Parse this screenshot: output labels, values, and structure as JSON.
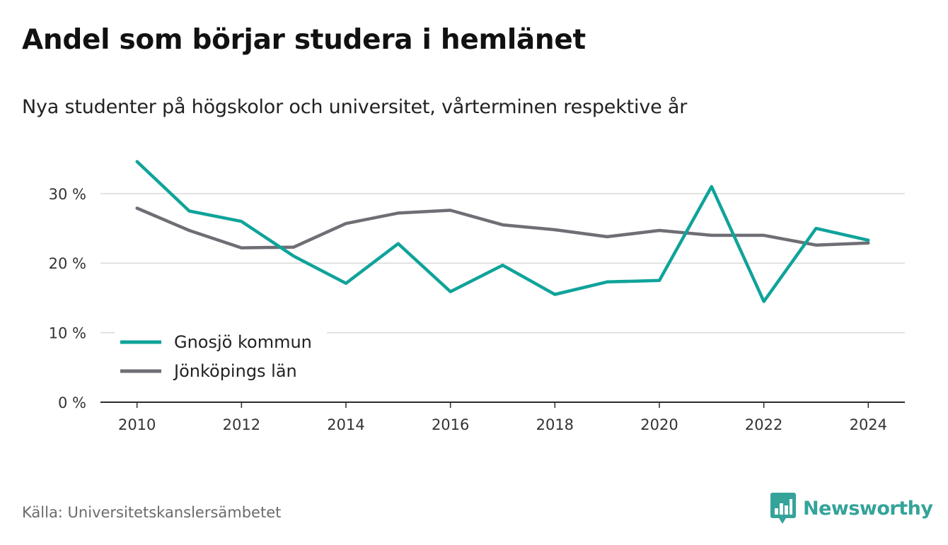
{
  "header": {
    "title": "Andel som börjar studera i hemlänet",
    "subtitle": "Nya studenter på högskolor och universitet, vårterminen respektive år"
  },
  "footer": {
    "source": "Källa: Universitetskanslersämbetet",
    "brand": "Newsworthy",
    "brand_icon": "bar-chart-speech-bubble-icon",
    "brand_color": "#35a39a"
  },
  "chart_data": {
    "type": "line",
    "x": [
      2010,
      2011,
      2012,
      2013,
      2014,
      2015,
      2016,
      2017,
      2018,
      2019,
      2020,
      2021,
      2022,
      2023,
      2024
    ],
    "xticks": [
      2010,
      2012,
      2014,
      2016,
      2018,
      2020,
      2022,
      2024
    ],
    "xtick_labels": [
      "2010",
      "2012",
      "2014",
      "2016",
      "2018",
      "2020",
      "2022",
      "2024"
    ],
    "xlim": [
      2009.3,
      2024.7
    ],
    "ylim": [
      0,
      37
    ],
    "yticks": [
      0,
      10,
      20,
      30
    ],
    "ytick_labels": [
      "0 %",
      "10 %",
      "20 %",
      "30 %"
    ],
    "grid": true,
    "legend_position": "lower-left",
    "series": [
      {
        "name": "Gnosjö kommun",
        "color": "#0fa39a",
        "values": [
          34.6,
          27.5,
          26.0,
          21.0,
          17.1,
          22.8,
          15.9,
          19.7,
          15.5,
          17.3,
          17.5,
          31.0,
          14.5,
          25.0,
          23.3
        ]
      },
      {
        "name": "Jönköpings län",
        "color": "#6e6e75",
        "values": [
          27.9,
          24.7,
          22.2,
          22.3,
          25.7,
          27.2,
          27.6,
          25.5,
          24.8,
          23.8,
          24.7,
          24.0,
          24.0,
          22.6,
          22.9
        ]
      }
    ]
  }
}
